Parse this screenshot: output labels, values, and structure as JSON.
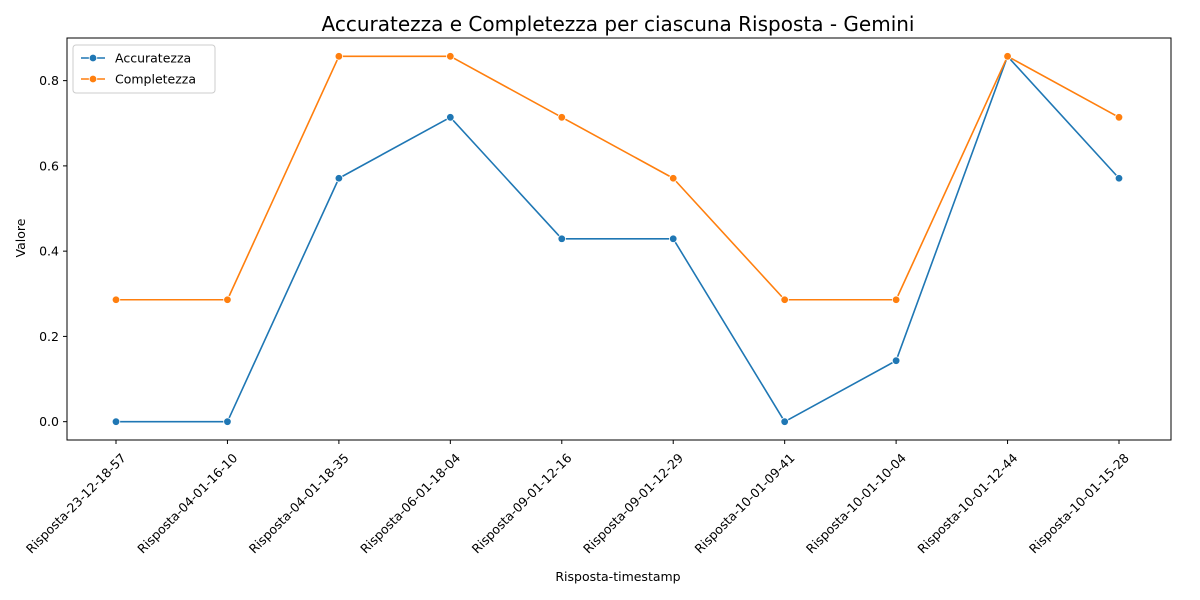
{
  "chart_data": {
    "type": "line",
    "title": "Accuratezza e Completezza per ciascuna Risposta - Gemini",
    "xlabel": "Risposta-timestamp",
    "ylabel": "Valore",
    "categories": [
      "Risposta-23-12-18-57",
      "Risposta-04-01-16-10",
      "Risposta-04-01-18-35",
      "Risposta-06-01-18-04",
      "Risposta-09-01-12-16",
      "Risposta-09-01-12-29",
      "Risposta-10-01-09-41",
      "Risposta-10-01-10-04",
      "Risposta-10-01-12-44",
      "Risposta-10-01-15-28"
    ],
    "series": [
      {
        "name": "Accuratezza",
        "color": "#1f77b4",
        "values": [
          0.0,
          0.0,
          0.571,
          0.714,
          0.429,
          0.429,
          0.0,
          0.143,
          0.857,
          0.571
        ]
      },
      {
        "name": "Completezza",
        "color": "#ff7f0e",
        "values": [
          0.286,
          0.286,
          0.857,
          0.857,
          0.714,
          0.571,
          0.286,
          0.286,
          0.857,
          0.714
        ]
      }
    ],
    "ylim": [
      -0.043,
      0.9
    ],
    "yticks": [
      "0.0",
      "0.2",
      "0.4",
      "0.6",
      "0.8"
    ],
    "legend_position": "top-left",
    "grid": false,
    "markers": true
  }
}
